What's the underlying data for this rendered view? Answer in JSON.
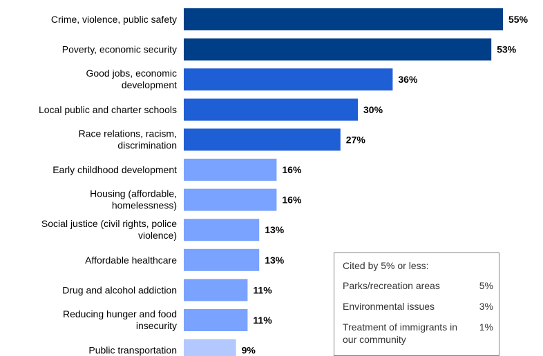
{
  "chart_data": {
    "type": "bar",
    "orientation": "horizontal",
    "categories": [
      [
        "Crime, violence, public safety"
      ],
      [
        "Poverty, economic security"
      ],
      [
        "Good jobs, economic",
        "development"
      ],
      [
        "Local public and charter schools"
      ],
      [
        "Race relations, racism,",
        "discrimination"
      ],
      [
        "Early childhood development"
      ],
      [
        "Housing (affordable,",
        "homelessness)"
      ],
      [
        "Social justice (civil rights, police",
        "violence)"
      ],
      [
        "Affordable healthcare"
      ],
      [
        "Drug and alcohol addiction"
      ],
      [
        "Reducing hunger and food",
        "insecurity"
      ],
      [
        "Public transportation"
      ]
    ],
    "values": [
      55,
      53,
      36,
      30,
      27,
      16,
      16,
      13,
      13,
      11,
      11,
      9
    ],
    "value_labels": [
      "55%",
      "53%",
      "36%",
      "30%",
      "27%",
      "16%",
      "16%",
      "13%",
      "13%",
      "11%",
      "11%",
      "9%"
    ],
    "bar_colors": [
      "#003f87",
      "#003f87",
      "#1f5fd6",
      "#1f5fd6",
      "#1f5fd6",
      "#7aa2ff",
      "#7aa2ff",
      "#7aa2ff",
      "#7aa2ff",
      "#7aa2ff",
      "#7aa2ff",
      "#b3c8ff"
    ],
    "xlim": [
      0,
      55
    ],
    "grid": false,
    "legend": "none"
  },
  "note_box": {
    "title": "Cited by 5% or less:",
    "rows": [
      {
        "name": "Parks/recreation areas",
        "value": "5%"
      },
      {
        "name": "Environmental issues",
        "value": "3%"
      },
      {
        "name": "Treatment of immigrants in our community",
        "value": "1%"
      }
    ]
  }
}
